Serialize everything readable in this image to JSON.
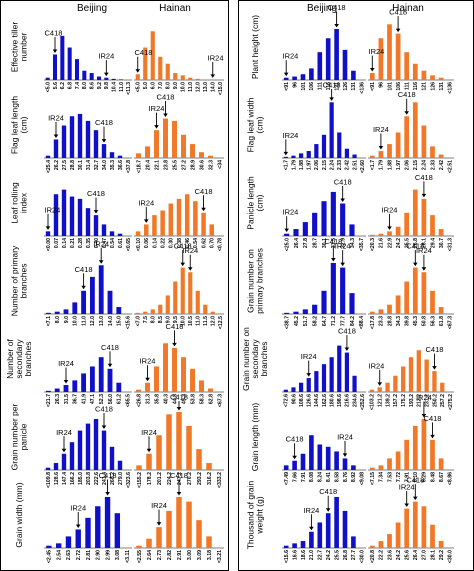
{
  "headers": {
    "beijing": "Beijing",
    "hainan": "Hainan"
  },
  "colors": {
    "beijing": "#1010c8",
    "hainan": "#f07828"
  },
  "chart_data": [
    {
      "type": "bar",
      "ylabel": "Effective tiller number",
      "env": "Beijing",
      "categories": [
        "<5.0",
        "5.6",
        "6.2",
        "6.8",
        "7.4",
        "8.0",
        "8.6",
        "9.2",
        "9.8",
        "10.4",
        "11.0",
        "<11.3"
      ],
      "values": [
        2,
        22,
        38,
        28,
        18,
        8,
        6,
        3,
        2,
        1,
        0.5,
        0
      ],
      "markers": [
        {
          "label": "C418",
          "cat": 1
        },
        {
          "label": "IR24",
          "cat": 8
        }
      ]
    },
    {
      "type": "bar",
      "ylabel": "Effective tiller number",
      "env": "Hainan",
      "categories": [
        "<5.0",
        "5.0",
        "6.0",
        "7.0",
        "8.0",
        "9.0",
        "10.0",
        "11.0",
        "12.0",
        "13.0",
        "14.0",
        "<15.0"
      ],
      "values": [
        5,
        28,
        42,
        20,
        14,
        6,
        4,
        2,
        1,
        0.5,
        0.5,
        0
      ],
      "markers": [
        {
          "label": "C418",
          "cat": 0
        },
        {
          "label": "IR24",
          "cat": 10
        }
      ]
    },
    {
      "type": "bar",
      "ylabel": "Flag leaf length (cm)",
      "env": "Beijing",
      "categories": [
        "<25.4",
        "26.2",
        "27.5",
        "28.8",
        "30.1",
        "31.4",
        "32.7",
        "34.0",
        "35.3",
        "36.6",
        "<37.8"
      ],
      "values": [
        2,
        16,
        28,
        36,
        38,
        32,
        24,
        12,
        5,
        2,
        0
      ],
      "markers": [
        {
          "label": "IR24",
          "cat": 1
        },
        {
          "label": "C418",
          "cat": 7
        }
      ]
    },
    {
      "type": "bar",
      "ylabel": "Flag leaf length (cm)",
      "env": "Hainan",
      "categories": [
        "<18.7",
        "20.4",
        "22.1",
        "23.8",
        "25.5",
        "27.2",
        "28.9",
        "30.6",
        "32.3",
        "<34"
      ],
      "values": [
        4,
        10,
        24,
        34,
        32,
        20,
        12,
        5,
        2,
        0
      ],
      "markers": [
        {
          "label": "IR24",
          "cat": 2
        },
        {
          "label": "C418",
          "cat": 3
        }
      ]
    },
    {
      "type": "bar",
      "ylabel": "Leaf rolling index",
      "env": "Beijing",
      "categories": [
        "<0.00",
        "0.07",
        "0.14",
        "0.21",
        "0.28",
        "0.35",
        "0.40",
        "0.47",
        "0.54",
        "0.61",
        "<0.65"
      ],
      "values": [
        4,
        36,
        40,
        34,
        32,
        24,
        18,
        10,
        4,
        2,
        0
      ],
      "markers": [
        {
          "label": "IR24",
          "cat": 0
        },
        {
          "label": "C418",
          "cat": 6
        }
      ]
    },
    {
      "type": "bar",
      "ylabel": "Leaf rolling index",
      "env": "Hainan",
      "categories": [
        "<0.10",
        "0.06",
        "0.14",
        "0.22",
        "0.30",
        "0.38",
        "0.46",
        "0.54",
        "0.62",
        "0.70",
        "<0.78"
      ],
      "values": [
        4,
        10,
        18,
        22,
        28,
        32,
        36,
        30,
        20,
        10,
        0
      ],
      "markers": [
        {
          "label": "IR24",
          "cat": 1
        },
        {
          "label": "C418",
          "cat": 8
        }
      ]
    },
    {
      "type": "bar",
      "ylabel": "Number of primary branches",
      "env": "Beijing",
      "categories": [
        "<7.1",
        "8.0",
        "9.0",
        "10.0",
        "11.0",
        "12.0",
        "13.0",
        "14.0",
        "15.0",
        "<15.6"
      ],
      "values": [
        1,
        2,
        4,
        10,
        20,
        32,
        42,
        20,
        6,
        0
      ],
      "markers": [
        {
          "label": "C418",
          "cat": 4
        },
        {
          "label": "IR24",
          "cat": 6
        }
      ]
    },
    {
      "type": "bar",
      "ylabel": "Number of primary branches",
      "env": "Hainan",
      "categories": [
        "<7.0",
        "7.5",
        "8.0",
        "8.5",
        "9.0",
        "9.5",
        "10.0",
        "10.5",
        "11.0",
        "11.5",
        "12.0",
        "<12.5"
      ],
      "values": [
        1,
        2,
        4,
        8,
        16,
        28,
        40,
        36,
        20,
        8,
        2,
        0
      ],
      "markers": [
        {
          "label": "C418",
          "cat": 6
        },
        {
          "label": "IR24",
          "cat": 7
        }
      ]
    },
    {
      "type": "bar",
      "ylabel": "Number of secondary branches",
      "env": "Beijing",
      "categories": [
        "<21.7",
        "26.3",
        "31.5",
        "36.7",
        "41.9",
        "47.1",
        "52.3",
        "56.0",
        "61.2",
        "<65.5"
      ],
      "values": [
        1,
        3,
        6,
        10,
        16,
        22,
        30,
        20,
        8,
        0
      ],
      "markers": [
        {
          "label": "IR24",
          "cat": 2
        },
        {
          "label": "C418",
          "cat": 7
        }
      ]
    },
    {
      "type": "bar",
      "ylabel": "Number of secondary branches",
      "env": "Hainan",
      "categories": [
        "<26.8",
        "31.3",
        "35.8",
        "40.3",
        "44.8",
        "49.3",
        "53.8",
        "58.3",
        "62.8",
        "<67.3"
      ],
      "values": [
        2,
        8,
        22,
        42,
        38,
        30,
        20,
        10,
        3,
        0
      ],
      "markers": [
        {
          "label": "IR24",
          "cat": 1
        },
        {
          "label": "C418",
          "cat": 4
        }
      ]
    },
    {
      "type": "bar",
      "ylabel": "Grain number per panicle",
      "env": "Beijing",
      "categories": [
        "<109.8",
        "128.6",
        "147.4",
        "166.2",
        "185.0",
        "203.8",
        "222.6",
        "241.4",
        "260.2",
        "279.0",
        "<323.6"
      ],
      "values": [
        2,
        6,
        14,
        24,
        34,
        40,
        44,
        34,
        20,
        8,
        0
      ],
      "markers": [
        {
          "label": "IR24",
          "cat": 2
        },
        {
          "label": "C418",
          "cat": 7
        }
      ]
    },
    {
      "type": "bar",
      "ylabel": "Grain number per panicle",
      "env": "Hainan",
      "categories": [
        "<155.2",
        "178.2",
        "201.2",
        "224.2",
        "247.2",
        "270.2",
        "293.2",
        "316.2",
        "<333.2"
      ],
      "values": [
        4,
        14,
        30,
        48,
        50,
        38,
        18,
        6,
        0
      ],
      "markers": [
        {
          "label": "IR24",
          "cat": 1
        },
        {
          "label": "C418",
          "cat": 4
        }
      ]
    },
    {
      "type": "bar",
      "ylabel": "Grain width (mm)",
      "env": "Beijing",
      "categories": [
        "<2.45",
        "2.54",
        "2.63",
        "2.72",
        "2.81",
        "2.90",
        "2.99",
        "3.08",
        "<3.11"
      ],
      "values": [
        2,
        4,
        10,
        16,
        26,
        36,
        44,
        30,
        0
      ],
      "markers": [
        {
          "label": "IR24",
          "cat": 3
        },
        {
          "label": "C418",
          "cat": 6
        }
      ]
    },
    {
      "type": "bar",
      "ylabel": "Grain width (mm)",
      "env": "Hainan",
      "categories": [
        "<2.55",
        "2.64",
        "2.73",
        "2.82",
        "2.91",
        "3.00",
        "3.09",
        "3.18",
        "<3.21"
      ],
      "values": [
        2,
        8,
        18,
        32,
        44,
        40,
        24,
        10,
        0
      ],
      "markers": [
        {
          "label": "IR24",
          "cat": 2
        },
        {
          "label": "C418",
          "cat": 4
        }
      ]
    },
    {
      "type": "bar",
      "ylabel": "Plant height (cm)",
      "env": "Beijing",
      "categories": [
        "<91",
        "96",
        "101",
        "106",
        "111",
        "116",
        "121",
        "126",
        "131",
        "<136"
      ],
      "values": [
        2,
        3,
        5,
        10,
        24,
        36,
        44,
        26,
        8,
        0
      ],
      "markers": [
        {
          "label": "IR24",
          "cat": 0
        },
        {
          "label": "C418",
          "cat": 6
        }
      ]
    },
    {
      "type": "bar",
      "ylabel": "Plant height (cm)",
      "env": "Hainan",
      "categories": [
        "<91",
        "96",
        "101",
        "106",
        "111",
        "116",
        "121",
        "126",
        "131",
        "<136"
      ],
      "values": [
        6,
        36,
        48,
        40,
        24,
        14,
        8,
        4,
        2,
        0
      ],
      "markers": [
        {
          "label": "IR24",
          "cat": 0
        },
        {
          "label": "C418",
          "cat": 3
        }
      ]
    },
    {
      "type": "bar",
      "ylabel": "Flag leaf width (cm)",
      "env": "Beijing",
      "categories": [
        "<1.7",
        "1.79",
        "1.88",
        "1.97",
        "2.06",
        "2.15",
        "2.24",
        "2.33",
        "2.42",
        "2.51",
        "<2.60"
      ],
      "values": [
        1,
        2,
        4,
        6,
        12,
        20,
        48,
        22,
        8,
        3,
        0
      ],
      "markers": [
        {
          "label": "IR24",
          "cat": 0
        },
        {
          "label": "C418",
          "cat": 6
        }
      ]
    },
    {
      "type": "bar",
      "ylabel": "Flag leaf width (cm)",
      "env": "Hainan",
      "categories": [
        "<1.7",
        "1.79",
        "1.88",
        "1.97",
        "2.06",
        "2.15",
        "2.24",
        "2.33",
        "2.42",
        "<2.51"
      ],
      "values": [
        2,
        6,
        12,
        22,
        36,
        48,
        28,
        10,
        3,
        0
      ],
      "markers": [
        {
          "label": "IR24",
          "cat": 1
        },
        {
          "label": "C418",
          "cat": 4
        }
      ]
    },
    {
      "type": "bar",
      "ylabel": "Panicle length (cm)",
      "env": "Beijing",
      "categories": [
        "<25.0",
        "26.4",
        "27.8",
        "28.7",
        "30.1",
        "31.5",
        "32.9",
        "34.3",
        "<35.7"
      ],
      "values": [
        2,
        6,
        12,
        20,
        30,
        38,
        28,
        10,
        0
      ],
      "markers": [
        {
          "label": "IR24",
          "cat": 0
        },
        {
          "label": "C418",
          "cat": 6
        }
      ]
    },
    {
      "type": "bar",
      "ylabel": "Panicle length (cm)",
      "env": "Hainan",
      "categories": [
        "<20.3",
        "21.6",
        "22.9",
        "24.2",
        "25.5",
        "26.8",
        "28.1",
        "29.4",
        "30.7",
        "<31.3"
      ],
      "values": [
        1,
        2,
        4,
        8,
        20,
        40,
        32,
        18,
        6,
        0
      ],
      "markers": [
        {
          "label": "IR24",
          "cat": 2
        },
        {
          "label": "C418",
          "cat": 6
        }
      ]
    },
    {
      "type": "bar",
      "ylabel": "Grain number on primary branches",
      "env": "Beijing",
      "categories": [
        "<38.7",
        "45.2",
        "51.7",
        "58.2",
        "64.7",
        "71.2",
        "77.7",
        "84.2",
        "<88.4"
      ],
      "values": [
        1,
        2,
        4,
        8,
        20,
        44,
        40,
        18,
        0
      ],
      "markers": [
        {
          "label": "C418",
          "cat": 5
        },
        {
          "label": "IR24",
          "cat": 6
        }
      ]
    },
    {
      "type": "bar",
      "ylabel": "Grain number on primary branches",
      "env": "Hainan",
      "categories": [
        "<17.8",
        "23.3",
        "28.8",
        "34.3",
        "39.8",
        "45.3",
        "50.8",
        "56.3",
        "61.8",
        "<67.3"
      ],
      "values": [
        2,
        4,
        8,
        16,
        28,
        40,
        36,
        20,
        6,
        0
      ],
      "markers": [
        {
          "label": "C418",
          "cat": 5
        },
        {
          "label": "IR24",
          "cat": 6
        }
      ]
    },
    {
      "type": "bar",
      "ylabel": "Grain number on secondary branches",
      "env": "Beijing",
      "categories": [
        "<72.6",
        "90.6",
        "108.6",
        "126.6",
        "144.6",
        "162.6",
        "180.6",
        "198.6",
        "216.6",
        "234.6",
        "<252.6"
      ],
      "values": [
        2,
        4,
        8,
        12,
        18,
        24,
        30,
        40,
        34,
        14,
        0
      ],
      "markers": [
        {
          "label": "IR24",
          "cat": 3
        },
        {
          "label": "C418",
          "cat": 8
        }
      ]
    },
    {
      "type": "bar",
      "ylabel": "Grain number on secondary branches",
      "env": "Hainan",
      "categories": [
        "<103.2",
        "121.2",
        "139.2",
        "157.2",
        "175.2",
        "193.2",
        "212.2",
        "231.2",
        "250.2",
        "257.2",
        "<275.2"
      ],
      "values": [
        2,
        4,
        8,
        14,
        22,
        30,
        36,
        28,
        18,
        8,
        0
      ],
      "markers": [
        {
          "label": "IR24",
          "cat": 1
        },
        {
          "label": "C418",
          "cat": 8
        }
      ]
    },
    {
      "type": "bar",
      "ylabel": "Grain length (mm)",
      "env": "Beijing",
      "categories": [
        "<7.49",
        "7.66",
        "7.91",
        "8.08",
        "8.24",
        "8.41",
        "8.58",
        "8.76",
        "8.92",
        "<9.08"
      ],
      "values": [
        4,
        8,
        14,
        30,
        22,
        20,
        16,
        10,
        4,
        0
      ],
      "markers": [
        {
          "label": "C418",
          "cat": 1
        },
        {
          "label": "IR24",
          "cat": 7
        }
      ]
    },
    {
      "type": "bar",
      "ylabel": "Grain length (mm)",
      "env": "Hainan",
      "categories": [
        "<7.15",
        "7.34",
        "7.53",
        "7.72",
        "7.91",
        "8.10",
        "8.29",
        "8.48",
        "8.67",
        "<8.86"
      ],
      "values": [
        2,
        4,
        10,
        16,
        26,
        38,
        44,
        26,
        10,
        0
      ],
      "markers": [
        {
          "label": "IR24",
          "cat": 6
        },
        {
          "label": "C418",
          "cat": 7
        }
      ]
    },
    {
      "type": "bar",
      "ylabel": "Thousand of grain weight (g)",
      "env": "Beijing",
      "categories": [
        "<15.6",
        "16.6",
        "18.6",
        "21.0",
        "22.7",
        "24.2",
        "25.5",
        "26.8",
        "27.7",
        "<30.0"
      ],
      "values": [
        2,
        4,
        6,
        14,
        22,
        30,
        44,
        32,
        10,
        0
      ],
      "markers": [
        {
          "label": "IR24",
          "cat": 3
        },
        {
          "label": "C418",
          "cat": 5
        }
      ]
    },
    {
      "type": "bar",
      "ylabel": "Thousand of grain weight (g)",
      "env": "Hainan",
      "categories": [
        "<20.8",
        "22.2",
        "23.6",
        "24.2",
        "25.6",
        "26.4",
        "27.0",
        "28.1",
        "29.2",
        "<30.0"
      ],
      "values": [
        2,
        6,
        12,
        22,
        34,
        40,
        36,
        20,
        6,
        0
      ],
      "markers": [
        {
          "label": "IR24",
          "cat": 4
        },
        {
          "label": "C418",
          "cat": 5
        }
      ]
    }
  ]
}
